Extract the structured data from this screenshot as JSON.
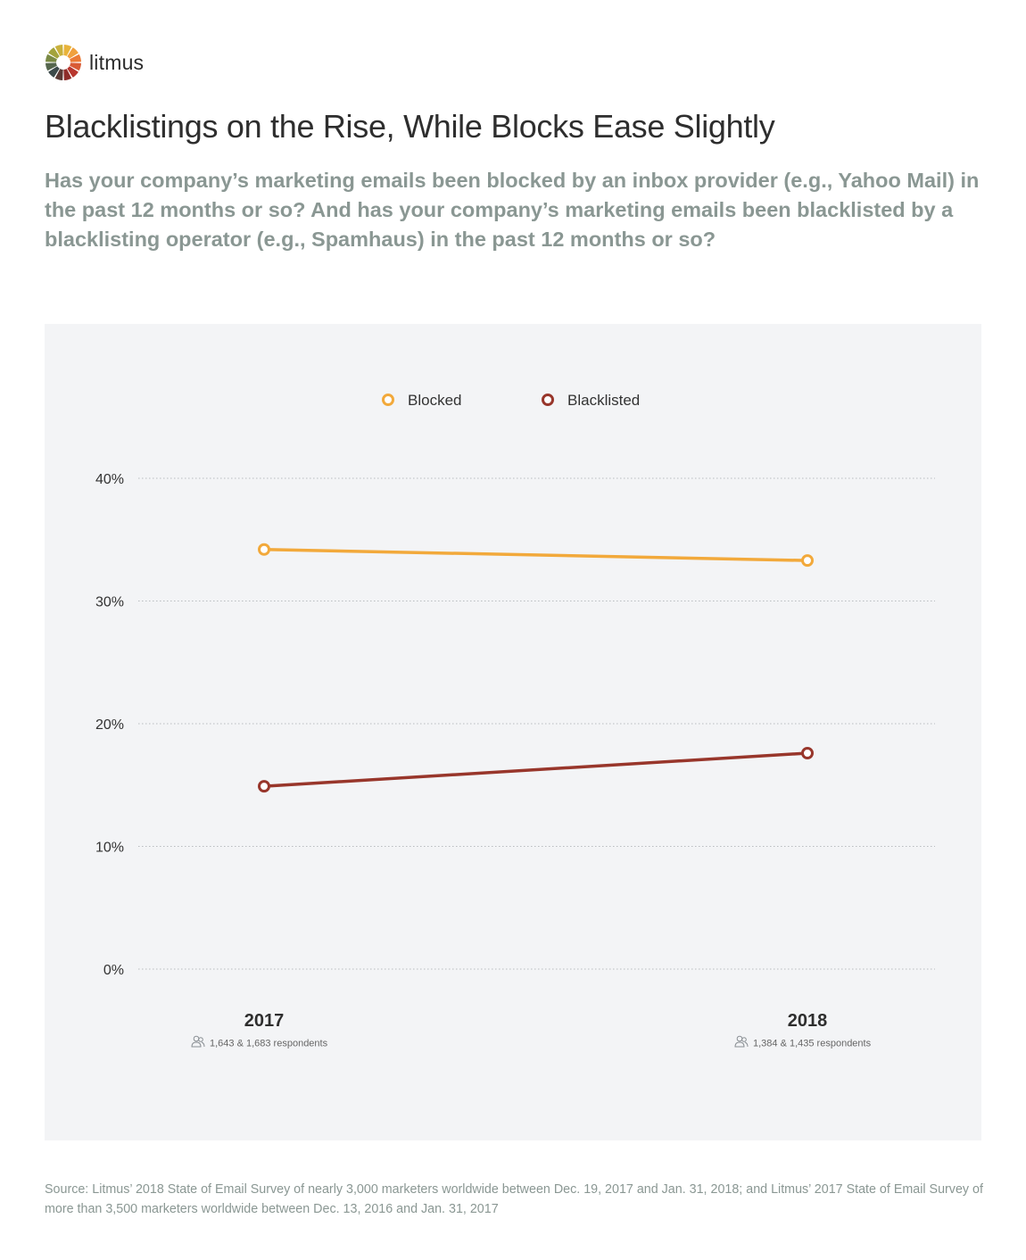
{
  "brand": {
    "name": "litmus"
  },
  "header": {
    "title": "Blacklistings on the Rise, While Blocks Ease Slightly",
    "subtitle": "Has your company’s marketing emails been blocked by an inbox provider (e.g., Yahoo Mail) in the past 12 months or so? And has your company’s marketing emails been blacklisted by a blacklisting operator (e.g., Spamhaus) in the past 12 months or so?"
  },
  "chart_data": {
    "type": "line",
    "categories": [
      "2017",
      "2018"
    ],
    "respondents": [
      "1,643 & 1,683 respondents",
      "1,384 & 1,435 respondents"
    ],
    "series": [
      {
        "name": "Blocked",
        "values": [
          34.2,
          33.3
        ],
        "color": "#f2a93b"
      },
      {
        "name": "Blacklisted",
        "values": [
          14.9,
          17.6
        ],
        "color": "#98362b"
      }
    ],
    "y_ticks": [
      0,
      10,
      20,
      30,
      40
    ],
    "y_tick_labels": [
      "0%",
      "10%",
      "20%",
      "30%",
      "40%"
    ],
    "ylim": [
      0,
      40
    ],
    "grid": true,
    "legend_position": "top-center",
    "title": "",
    "xlabel": "",
    "ylabel": ""
  },
  "footer": {
    "source": "Source: Litmus’ 2018 State of Email Survey of nearly 3,000 marketers worldwide between Dec. 19, 2017 and Jan. 31, 2018; and Litmus’ 2017 State of Email Survey of more than 3,500 marketers worldwide between Dec. 13, 2016 and Jan. 31, 2017"
  },
  "colors": {
    "logo_segments": [
      "#e8b33a",
      "#f0a13e",
      "#eb7b36",
      "#d95b35",
      "#b8362e",
      "#8e2d2a",
      "#5a3a35",
      "#3c4a4a",
      "#55664d",
      "#7a8a45",
      "#a3a33d",
      "#c9b13c"
    ]
  }
}
